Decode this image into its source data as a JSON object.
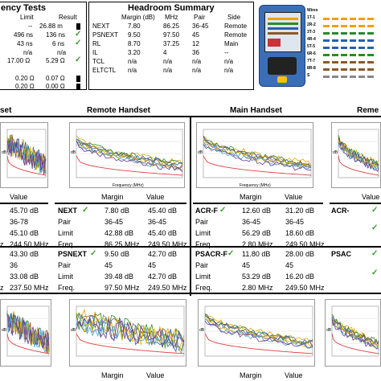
{
  "latency": {
    "title": "ency Tests",
    "headers": [
      "Limit",
      "Result"
    ],
    "rows": [
      {
        "limit": "--",
        "result": "26.88 m",
        "mark": "info"
      },
      {
        "label": "496 ns",
        "limit": "",
        "result": "136 ns",
        "mark": "check"
      },
      {
        "label": "43 ns",
        "limit": "",
        "result": "6 ns",
        "mark": "check"
      },
      {
        "label": "n/a",
        "limit": "",
        "result": "n/a",
        "mark": ""
      },
      {
        "label": "17.00 Ω",
        "limit": "",
        "result": "5.29 Ω",
        "mark": "check"
      },
      {
        "label": "0.20 Ω",
        "limit": "",
        "result": "0.07 Ω",
        "mark": "info"
      },
      {
        "label": "0.20 Ω",
        "limit": "",
        "result": "0.00 Ω",
        "mark": "info"
      }
    ]
  },
  "headroom": {
    "title": "Headroom Summary",
    "headers": [
      "Margin (dB)",
      "MHz",
      "Pair",
      "Side"
    ],
    "rows": [
      {
        "name": "NEXT",
        "margin": "7.80",
        "mhz": "86.25",
        "pair": "36-45",
        "side": "Remote"
      },
      {
        "name": "PSNEXT",
        "margin": "9.50",
        "mhz": "97.50",
        "pair": "45",
        "side": "Remote"
      },
      {
        "name": "RL",
        "margin": "8.70",
        "mhz": "37.25",
        "pair": "12",
        "side": "Main"
      },
      {
        "name": "IL",
        "margin": "3.20",
        "mhz": "4",
        "pair": "36",
        "side": "--"
      },
      {
        "name": "TCL",
        "margin": "n/a",
        "mhz": "n/a",
        "pair": "n/a",
        "side": "n/a"
      },
      {
        "name": "ELTCTL",
        "margin": "n/a",
        "mhz": "n/a",
        "pair": "n/a",
        "side": "n/a"
      }
    ]
  },
  "wiremap": {
    "labels": [
      "Wires",
      "1T-1",
      "2R-2",
      "3T-3",
      "4R-4",
      "5T-5",
      "6R-6",
      "7T-7",
      "8R-8",
      "S"
    ],
    "colors": [
      "#f0a000",
      "#f0a000",
      "#2a8a2a",
      "#2b5fb0",
      "#2b5fb0",
      "#2a8a2a",
      "#8a5a2a",
      "#8a5a2a",
      "#888888"
    ]
  },
  "sections": {
    "left_partial": "set",
    "remote_handset": "Remote Handset",
    "main_handset": "Main Handset",
    "right_partial": "Reme"
  },
  "graph_axes": {
    "y": "dB",
    "x": "Frequency (MHz)"
  },
  "tables": {
    "col_value": "Value",
    "col_margin": "Margin",
    "left_partial_top": [
      {
        "label": "",
        "v1": "45.70 dB"
      },
      {
        "label": "",
        "v1": "36-78"
      },
      {
        "label": "",
        "v1": "45.10 dB"
      },
      {
        "label": "z",
        "v1": "244.50 MHz"
      }
    ],
    "next": {
      "title": "NEXT",
      "rows": [
        {
          "label": "",
          "margin": "7.80 dB",
          "value": "45.40 dB"
        },
        {
          "label": "Pair",
          "margin": "36-45",
          "value": "36-45"
        },
        {
          "label": "Limit",
          "margin": "42.88 dB",
          "value": "45.40 dB"
        },
        {
          "label": "Freq.",
          "margin": "86.25 MHz",
          "value": "249.50 MHz"
        }
      ]
    },
    "acrf": {
      "title": "ACR-F",
      "rows": [
        {
          "label": "",
          "margin": "12.60 dB",
          "value": "31.20 dB"
        },
        {
          "label": "Pair",
          "margin": "36-45",
          "value": "36-45"
        },
        {
          "label": "Limit",
          "margin": "56.29 dB",
          "value": "18.60 dB"
        },
        {
          "label": "Freq.",
          "margin": "2.80 MHz",
          "value": "249.50 MHz"
        }
      ]
    },
    "right_partial_top": {
      "title": "ACR-"
    },
    "left_partial_bottom": [
      {
        "label": "",
        "v1": "43.30 dB"
      },
      {
        "label": "",
        "v1": "36"
      },
      {
        "label": "",
        "v1": "33.08 dB"
      },
      {
        "label": "z",
        "v1": "237.50 MHz"
      }
    ],
    "psnext": {
      "title": "PSNEXT",
      "rows": [
        {
          "label": "",
          "margin": "9.50 dB",
          "value": "42.70 dB"
        },
        {
          "label": "Pair",
          "margin": "45",
          "value": "45"
        },
        {
          "label": "Limit",
          "margin": "39.48 dB",
          "value": "42.70 dB"
        },
        {
          "label": "Freq.",
          "margin": "97.50 MHz",
          "value": "249.50 MHz"
        }
      ]
    },
    "psacrf": {
      "title": "PSACR-F",
      "rows": [
        {
          "label": "",
          "margin": "11.80 dB",
          "value": "28.00 dB"
        },
        {
          "label": "Pair",
          "margin": "45",
          "value": "45"
        },
        {
          "label": "Limit",
          "margin": "53.29 dB",
          "value": "16.20 dB"
        },
        {
          "label": "Freq.",
          "margin": "2.80 MHz",
          "value": "249.50 MHz"
        }
      ]
    },
    "right_partial_bottom": {
      "title": "PSAC"
    }
  },
  "bottom_x_labels": [
    "Margin",
    "Value",
    "Margin",
    "Value"
  ]
}
